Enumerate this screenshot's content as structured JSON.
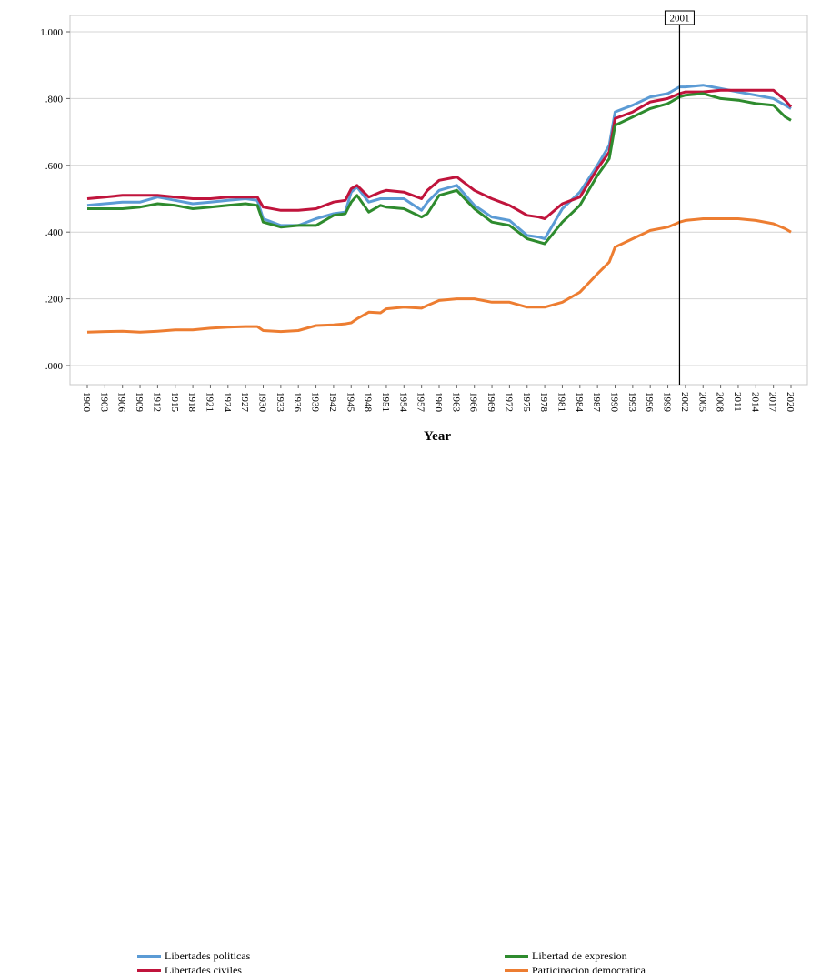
{
  "chart_data": {
    "type": "line",
    "xlabel": "Year",
    "ylabel": "",
    "ylim": [
      0,
      1.0
    ],
    "y_ticks": [
      ".000",
      ".200",
      ".400",
      ".600",
      ".800",
      "1.000"
    ],
    "x_tick_labels": [
      "1900",
      "1903",
      "1906",
      "1909",
      "1912",
      "1915",
      "1918",
      "1921",
      "1924",
      "1927",
      "1930",
      "1933",
      "1936",
      "1939",
      "1942",
      "1945",
      "1948",
      "1951",
      "1954",
      "1957",
      "1960",
      "1963",
      "1966",
      "1969",
      "1972",
      "1975",
      "1978",
      "1981",
      "1984",
      "1987",
      "1990",
      "1993",
      "1996",
      "1999",
      "2002",
      "2005",
      "2008",
      "2011",
      "2014",
      "2017",
      "2020"
    ],
    "reference_line": {
      "x": 2001,
      "label": "2001"
    },
    "grid": true,
    "legend_position": "bottom",
    "x": [
      1900,
      1903,
      1906,
      1909,
      1912,
      1915,
      1918,
      1921,
      1924,
      1927,
      1929,
      1930,
      1933,
      1936,
      1939,
      1942,
      1944,
      1945,
      1946,
      1948,
      1950,
      1951,
      1954,
      1957,
      1958,
      1960,
      1963,
      1966,
      1969,
      1972,
      1975,
      1977,
      1978,
      1981,
      1984,
      1987,
      1989,
      1990,
      1993,
      1996,
      1999,
      2001,
      2002,
      2005,
      2008,
      2011,
      2014,
      2017,
      2019,
      2020
    ],
    "series": [
      {
        "name": "Libertades politicas",
        "color": "#5b9bd5",
        "values": [
          0.48,
          0.485,
          0.49,
          0.49,
          0.505,
          0.495,
          0.485,
          0.49,
          0.495,
          0.5,
          0.495,
          0.44,
          0.42,
          0.42,
          0.44,
          0.455,
          0.46,
          0.52,
          0.535,
          0.49,
          0.5,
          0.5,
          0.5,
          0.465,
          0.49,
          0.525,
          0.54,
          0.48,
          0.445,
          0.435,
          0.39,
          0.385,
          0.38,
          0.47,
          0.52,
          0.6,
          0.66,
          0.76,
          0.78,
          0.805,
          0.815,
          0.835,
          0.835,
          0.84,
          0.83,
          0.82,
          0.81,
          0.8,
          0.78,
          0.77
        ]
      },
      {
        "name": "Libertades civiles",
        "color": "#c0143c",
        "values": [
          0.5,
          0.505,
          0.51,
          0.51,
          0.51,
          0.505,
          0.5,
          0.5,
          0.505,
          0.505,
          0.505,
          0.475,
          0.465,
          0.465,
          0.47,
          0.49,
          0.495,
          0.53,
          0.54,
          0.505,
          0.52,
          0.525,
          0.52,
          0.5,
          0.525,
          0.555,
          0.565,
          0.525,
          0.5,
          0.48,
          0.45,
          0.445,
          0.44,
          0.485,
          0.505,
          0.59,
          0.64,
          0.74,
          0.76,
          0.79,
          0.8,
          0.815,
          0.82,
          0.82,
          0.825,
          0.825,
          0.825,
          0.825,
          0.795,
          0.775
        ]
      },
      {
        "name": "Libertad de expresion",
        "color": "#2e8b2e",
        "values": [
          0.47,
          0.47,
          0.47,
          0.475,
          0.485,
          0.48,
          0.47,
          0.475,
          0.48,
          0.485,
          0.48,
          0.43,
          0.415,
          0.42,
          0.42,
          0.45,
          0.455,
          0.49,
          0.51,
          0.46,
          0.48,
          0.475,
          0.47,
          0.445,
          0.455,
          0.51,
          0.525,
          0.47,
          0.43,
          0.42,
          0.38,
          0.37,
          0.365,
          0.43,
          0.48,
          0.57,
          0.62,
          0.72,
          0.745,
          0.77,
          0.785,
          0.805,
          0.81,
          0.815,
          0.8,
          0.795,
          0.785,
          0.78,
          0.745,
          0.735
        ]
      },
      {
        "name": "Participacion democratica",
        "color": "#ed7d31",
        "values": [
          0.1,
          0.102,
          0.103,
          0.1,
          0.103,
          0.107,
          0.107,
          0.112,
          0.115,
          0.117,
          0.117,
          0.105,
          0.102,
          0.105,
          0.12,
          0.122,
          0.125,
          0.128,
          0.14,
          0.16,
          0.158,
          0.17,
          0.175,
          0.172,
          0.18,
          0.195,
          0.2,
          0.2,
          0.19,
          0.19,
          0.175,
          0.175,
          0.175,
          0.19,
          0.22,
          0.275,
          0.31,
          0.355,
          0.38,
          0.405,
          0.415,
          0.43,
          0.435,
          0.44,
          0.44,
          0.44,
          0.435,
          0.425,
          0.41,
          0.4
        ]
      }
    ]
  }
}
